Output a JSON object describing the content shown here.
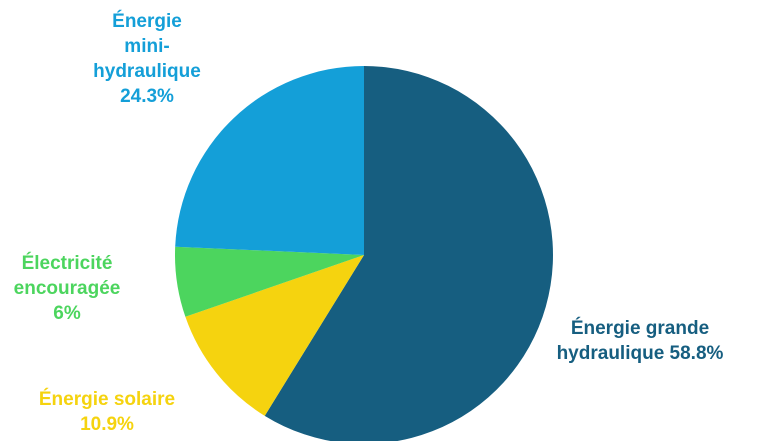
{
  "chart_data": {
    "type": "pie",
    "title": "",
    "start_angle_deg": 0,
    "direction": "clockwise",
    "slices": [
      {
        "label_lines": [
          "Énergie grande",
          "hydraulique 58.8%"
        ],
        "name": "Énergie grande hydraulique",
        "value": 58.8,
        "color": "#165e80",
        "label_color": "#165e80"
      },
      {
        "label_lines": [
          "Énergie solaire",
          "10.9%"
        ],
        "name": "Énergie solaire",
        "value": 10.9,
        "color": "#f5d30f",
        "label_color": "#f5d30f"
      },
      {
        "label_lines": [
          "Électricité",
          "encouragée",
          "6%"
        ],
        "name": "Électricité encouragée",
        "value": 6,
        "color": "#4cd55e",
        "label_color": "#4cd55e"
      },
      {
        "label_lines": [
          "Énergie",
          "mini-",
          "hydraulique",
          "24.3%"
        ],
        "name": "Énergie mini-hydraulique",
        "value": 24.3,
        "color": "#149fd8",
        "label_color": "#149fd8"
      }
    ]
  }
}
